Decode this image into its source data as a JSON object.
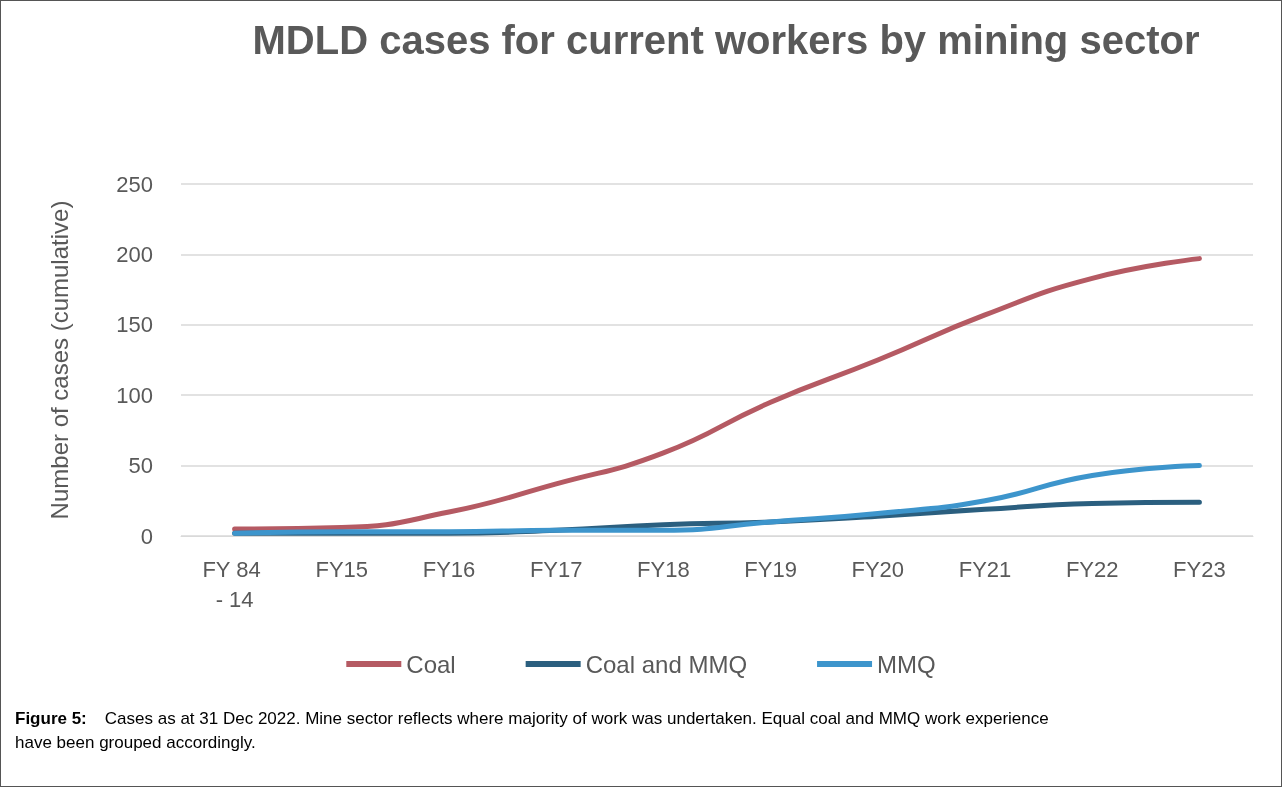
{
  "chart_data": {
    "type": "line",
    "title": "MDLD cases for current workers by mining sector",
    "ylabel": "Number of cases (cumulative)",
    "categories": [
      "FY 84 - 14",
      "FY15",
      "FY16",
      "FY17",
      "FY18",
      "FY19",
      "FY20",
      "FY21",
      "FY22",
      "FY23"
    ],
    "series": [
      {
        "name": "Coal",
        "color": "#b55a63",
        "values": [
          5,
          6,
          17,
          37,
          59,
          95,
          125,
          157,
          183,
          197
        ]
      },
      {
        "name": "Coal and MMQ",
        "color": "#2b5f7f",
        "values": [
          2,
          2,
          2,
          4,
          8,
          10,
          14,
          19,
          23,
          24
        ]
      },
      {
        "name": "MMQ",
        "color": "#3d95cc",
        "values": [
          2,
          3,
          3,
          4,
          4,
          10,
          16,
          25,
          43,
          50
        ]
      }
    ],
    "ylim": [
      0,
      250
    ],
    "yticks": [
      0,
      50,
      100,
      150,
      200,
      250
    ],
    "grid": "y",
    "legend": "bottom",
    "marker": "none",
    "line_style": "solid",
    "annotations": [
      "Figure 5: Cases as at 31 Dec 2022. Mine sector reflects where majority of work was undertaken. Equal coal and MMQ work experience have been grouped accordingly."
    ]
  }
}
